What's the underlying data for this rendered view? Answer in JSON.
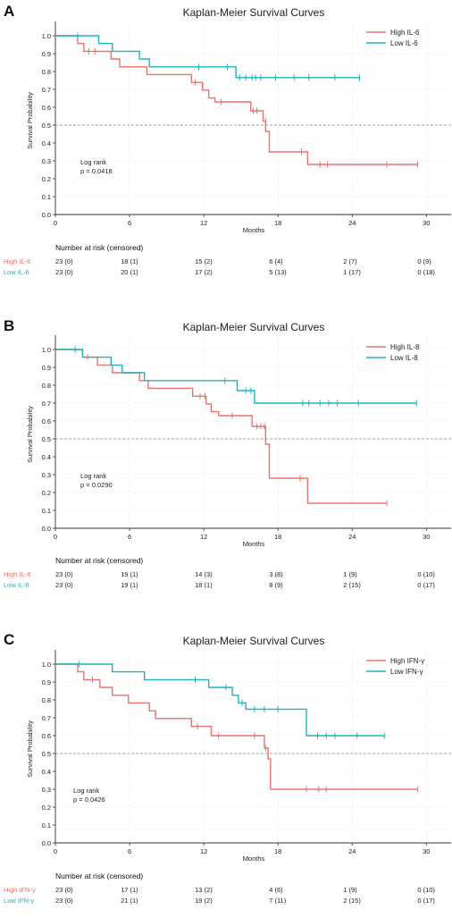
{
  "colors": {
    "high": "#e8736e",
    "low": "#22b2be",
    "axis": "#333333",
    "grid": "#e6e6e6",
    "refline": "#888888",
    "text": "#222222"
  },
  "chart_data": [
    {
      "panel": "A",
      "type": "line",
      "title": "Kaplan-Meier Survival Curves",
      "xlabel": "Months",
      "ylabel": "Survival Probability",
      "xlim": [
        0,
        32
      ],
      "ylim": [
        0,
        1.05
      ],
      "xticks": [
        0,
        6,
        12,
        18,
        24,
        30
      ],
      "yticks": [
        0.0,
        0.1,
        0.2,
        0.3,
        0.4,
        0.5,
        0.6,
        0.7,
        0.8,
        0.9,
        1.0
      ],
      "grid": true,
      "reference_line": 0.5,
      "legend_position": "top-right",
      "annotation": [
        "Log rank",
        "p = 0.0418"
      ],
      "series": [
        {
          "name": "High IL-6",
          "color_key": "high",
          "steps": [
            [
              0,
              1.0
            ],
            [
              1.8,
              0.957
            ],
            [
              2.3,
              0.913
            ],
            [
              4.5,
              0.87
            ],
            [
              5.2,
              0.826
            ],
            [
              7.4,
              0.783
            ],
            [
              11.0,
              0.739
            ],
            [
              11.9,
              0.696
            ],
            [
              12.4,
              0.652
            ],
            [
              12.9,
              0.63
            ],
            [
              15.8,
              0.58
            ],
            [
              16.8,
              0.522
            ],
            [
              17.0,
              0.465
            ],
            [
              17.3,
              0.35
            ],
            [
              20.4,
              0.28
            ],
            [
              29.3,
              0.28
            ]
          ],
          "censored": [
            [
              2.7,
              0.913
            ],
            [
              3.2,
              0.913
            ],
            [
              11.3,
              0.739
            ],
            [
              13.4,
              0.63
            ],
            [
              16.0,
              0.58
            ],
            [
              16.3,
              0.58
            ],
            [
              17.0,
              0.522
            ],
            [
              19.9,
              0.35
            ],
            [
              21.4,
              0.28
            ],
            [
              22.0,
              0.28
            ],
            [
              26.8,
              0.28
            ],
            [
              29.3,
              0.28
            ]
          ]
        },
        {
          "name": "Low  IL-6",
          "color_key": "low",
          "steps": [
            [
              0,
              1.0
            ],
            [
              3.5,
              0.957
            ],
            [
              4.6,
              0.913
            ],
            [
              6.8,
              0.87
            ],
            [
              7.6,
              0.826
            ],
            [
              14.6,
              0.766
            ],
            [
              24.6,
              0.766
            ]
          ],
          "censored": [
            [
              1.8,
              1.0
            ],
            [
              11.6,
              0.826
            ],
            [
              13.9,
              0.826
            ],
            [
              14.9,
              0.766
            ],
            [
              15.4,
              0.766
            ],
            [
              15.9,
              0.766
            ],
            [
              16.2,
              0.766
            ],
            [
              16.6,
              0.766
            ],
            [
              17.8,
              0.766
            ],
            [
              19.3,
              0.766
            ],
            [
              20.5,
              0.766
            ],
            [
              22.6,
              0.766
            ],
            [
              24.6,
              0.766
            ]
          ]
        }
      ],
      "risk_table": {
        "header": "Number at risk (censored)",
        "rows": [
          {
            "label": "High IL-6",
            "color_key": "high",
            "values": [
              "23 (0)",
              "18 (1)",
              "15 (2)",
              "6 (4)",
              "2 (7)",
              "0 (9)"
            ]
          },
          {
            "label": "Low  IL-6",
            "color_key": "low",
            "values": [
              "23 (0)",
              "20 (1)",
              "17 (2)",
              "5 (13)",
              "1 (17)",
              "0 (18)"
            ]
          }
        ]
      }
    },
    {
      "panel": "B",
      "type": "line",
      "title": "Kaplan-Meier Survival Curves",
      "xlabel": "Months",
      "ylabel": "Survival Probability",
      "xlim": [
        0,
        32
      ],
      "ylim": [
        0,
        1.05
      ],
      "xticks": [
        0,
        6,
        12,
        18,
        24,
        30
      ],
      "yticks": [
        0.0,
        0.1,
        0.2,
        0.3,
        0.4,
        0.5,
        0.6,
        0.7,
        0.8,
        0.9,
        1.0
      ],
      "grid": true,
      "reference_line": 0.5,
      "legend_position": "top-right",
      "annotation": [
        "Log rank",
        "p = 0.0290"
      ],
      "series": [
        {
          "name": "High IL-8",
          "color_key": "high",
          "steps": [
            [
              0,
              1.0
            ],
            [
              2.2,
              0.957
            ],
            [
              3.4,
              0.913
            ],
            [
              4.6,
              0.87
            ],
            [
              6.8,
              0.826
            ],
            [
              7.5,
              0.783
            ],
            [
              11.1,
              0.739
            ],
            [
              12.2,
              0.696
            ],
            [
              12.6,
              0.652
            ],
            [
              13.2,
              0.63
            ],
            [
              15.9,
              0.57
            ],
            [
              16.8,
              0.57
            ],
            [
              17.0,
              0.47
            ],
            [
              17.3,
              0.28
            ],
            [
              20.4,
              0.14
            ],
            [
              26.8,
              0.14
            ]
          ],
          "censored": [
            [
              2.6,
              0.957
            ],
            [
              11.7,
              0.739
            ],
            [
              12.1,
              0.739
            ],
            [
              14.3,
              0.63
            ],
            [
              16.3,
              0.57
            ],
            [
              16.6,
              0.57
            ],
            [
              16.9,
              0.57
            ],
            [
              19.8,
              0.28
            ],
            [
              26.8,
              0.14
            ]
          ]
        },
        {
          "name": "Low  IL-8",
          "color_key": "low",
          "steps": [
            [
              0,
              1.0
            ],
            [
              2.2,
              0.957
            ],
            [
              4.5,
              0.913
            ],
            [
              5.4,
              0.87
            ],
            [
              7.2,
              0.826
            ],
            [
              14.7,
              0.77
            ],
            [
              16.1,
              0.7
            ],
            [
              29.2,
              0.7
            ]
          ],
          "censored": [
            [
              1.6,
              1.0
            ],
            [
              13.7,
              0.826
            ],
            [
              15.4,
              0.77
            ],
            [
              15.8,
              0.77
            ],
            [
              20.0,
              0.7
            ],
            [
              20.5,
              0.7
            ],
            [
              21.4,
              0.7
            ],
            [
              22.1,
              0.7
            ],
            [
              22.8,
              0.7
            ],
            [
              24.5,
              0.7
            ],
            [
              29.2,
              0.7
            ]
          ]
        }
      ],
      "risk_table": {
        "header": "Number at risk (censored)",
        "rows": [
          {
            "label": "High IL-8",
            "color_key": "high",
            "values": [
              "23 (0)",
              "19 (1)",
              "14 (3)",
              "3 (8)",
              "1 (9)",
              "0 (10)"
            ]
          },
          {
            "label": "Low  IL-8",
            "color_key": "low",
            "values": [
              "23 (0)",
              "19 (1)",
              "18 (1)",
              "8 (9)",
              "2 (15)",
              "0 (17)"
            ]
          }
        ]
      }
    },
    {
      "panel": "C",
      "type": "line",
      "title": "Kaplan-Meier Survival Curves",
      "xlabel": "Months",
      "ylabel": "Survival Probability",
      "xlim": [
        0,
        32
      ],
      "ylim": [
        0,
        1.05
      ],
      "xticks": [
        0,
        6,
        12,
        18,
        24,
        30
      ],
      "yticks": [
        0.0,
        0.1,
        0.2,
        0.3,
        0.4,
        0.5,
        0.6,
        0.7,
        0.8,
        0.9,
        1.0
      ],
      "grid": true,
      "reference_line": 0.5,
      "legend_position": "top-right",
      "annotation": [
        "Log rank",
        "p = 0.0426"
      ],
      "series": [
        {
          "name": "High IFN-γ",
          "color_key": "high",
          "steps": [
            [
              0,
              1.0
            ],
            [
              1.8,
              0.957
            ],
            [
              2.3,
              0.913
            ],
            [
              3.6,
              0.87
            ],
            [
              4.6,
              0.826
            ],
            [
              5.9,
              0.783
            ],
            [
              7.6,
              0.739
            ],
            [
              8.1,
              0.696
            ],
            [
              11.0,
              0.652
            ],
            [
              12.6,
              0.6
            ],
            [
              16.9,
              0.53
            ],
            [
              17.2,
              0.47
            ],
            [
              17.4,
              0.3
            ],
            [
              29.3,
              0.3
            ]
          ],
          "censored": [
            [
              3.0,
              0.913
            ],
            [
              11.5,
              0.652
            ],
            [
              13.2,
              0.6
            ],
            [
              16.1,
              0.6
            ],
            [
              17.0,
              0.53
            ],
            [
              20.3,
              0.3
            ],
            [
              21.3,
              0.3
            ],
            [
              21.9,
              0.3
            ],
            [
              29.3,
              0.3
            ]
          ]
        },
        {
          "name": "Low  IFN-γ",
          "color_key": "low",
          "steps": [
            [
              0,
              1.0
            ],
            [
              4.6,
              0.957
            ],
            [
              7.2,
              0.913
            ],
            [
              12.4,
              0.87
            ],
            [
              14.3,
              0.826
            ],
            [
              14.8,
              0.783
            ],
            [
              15.4,
              0.748
            ],
            [
              20.3,
              0.6
            ],
            [
              26.6,
              0.6
            ]
          ],
          "censored": [
            [
              1.9,
              1.0
            ],
            [
              11.3,
              0.913
            ],
            [
              13.8,
              0.87
            ],
            [
              15.1,
              0.783
            ],
            [
              16.1,
              0.748
            ],
            [
              16.9,
              0.748
            ],
            [
              18.0,
              0.748
            ],
            [
              21.2,
              0.6
            ],
            [
              21.9,
              0.6
            ],
            [
              22.6,
              0.6
            ],
            [
              24.4,
              0.6
            ],
            [
              26.6,
              0.6
            ]
          ]
        }
      ],
      "risk_table": {
        "header": "Number at risk (censored)",
        "rows": [
          {
            "label": "High IFN-γ",
            "color_key": "high",
            "values": [
              "23 (0)",
              "17 (1)",
              "13 (2)",
              "4 (6)",
              "1 (9)",
              "0 (10)"
            ]
          },
          {
            "label": "Low  IFN-γ",
            "color_key": "low",
            "values": [
              "23 (0)",
              "21 (1)",
              "19 (2)",
              "7 (11)",
              "2 (15)",
              "0 (17)"
            ]
          }
        ]
      }
    }
  ]
}
